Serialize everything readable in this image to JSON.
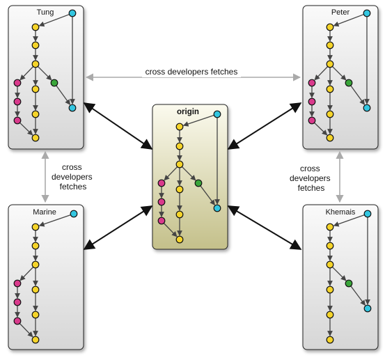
{
  "repositories": {
    "tung": {
      "title": "Tung"
    },
    "peter": {
      "title": "Peter"
    },
    "origin": {
      "title": "origin"
    },
    "marine": {
      "title": "Marine"
    },
    "khemais": {
      "title": "Khemais"
    }
  },
  "labels": {
    "top_fetch": "cross developers fetches",
    "left_fetch": [
      "cross",
      "developers",
      "fetches"
    ],
    "right_fetch": [
      "cross",
      "developers",
      "fetches"
    ]
  },
  "colors": {
    "commit_yellow": "#f5d42a",
    "commit_cyan": "#33c6e0",
    "commit_magenta": "#d93a8c",
    "commit_green": "#3aa53a",
    "box_fill": "#e4e4e4",
    "origin_fill": "#d6d3a4",
    "sync_arrow": "#111111",
    "fetch_arrow": "#aaaaaa"
  }
}
